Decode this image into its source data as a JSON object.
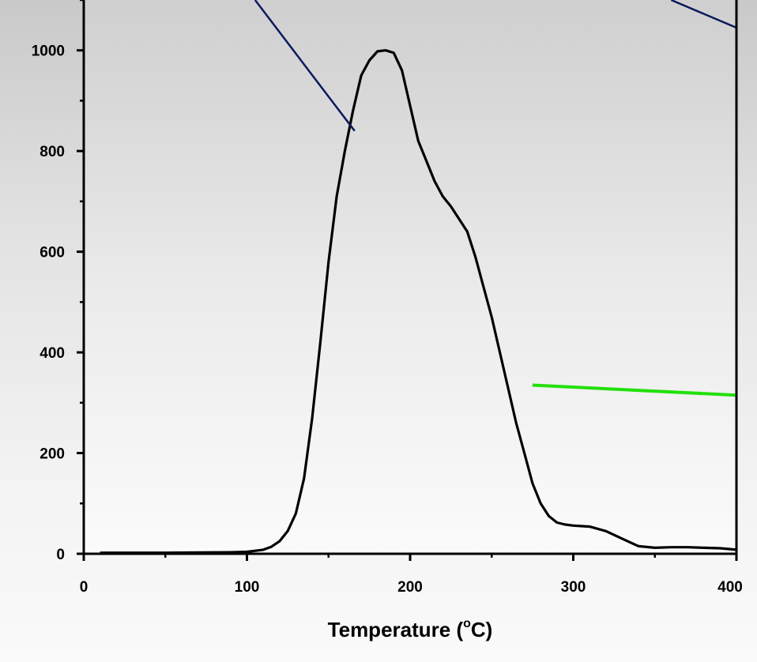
{
  "chart_data": {
    "type": "line",
    "title": "",
    "xlabel": "Temperature (",
    "xlabel_sup": "o",
    "xlabel_unit": "C)",
    "ylabel": "",
    "xlim": [
      0,
      400
    ],
    "ylim": [
      0,
      1100
    ],
    "x_ticks": [
      0,
      100,
      200,
      300,
      400
    ],
    "y_ticks": [
      0,
      200,
      400,
      600,
      800,
      1000
    ],
    "grid": false,
    "colors": {
      "line": "#000000",
      "annotation_navy": "#0a1a5c",
      "annotation_green": "#22e00a"
    },
    "series": [
      {
        "x": [
          10,
          50,
          90,
          100,
          110,
          115,
          120,
          125,
          130,
          135,
          140,
          145,
          150,
          155,
          160,
          165,
          170,
          175,
          180,
          185,
          190,
          195,
          200,
          205,
          210,
          215,
          220,
          225,
          230,
          235,
          240,
          245,
          250,
          255,
          260,
          265,
          270,
          275,
          280,
          285,
          290,
          295,
          300,
          310,
          320,
          330,
          340,
          350,
          360,
          370,
          380,
          390,
          400
        ],
        "y": [
          2,
          2,
          3,
          4,
          8,
          14,
          25,
          45,
          80,
          150,
          270,
          420,
          580,
          710,
          800,
          880,
          950,
          980,
          998,
          1000,
          995,
          960,
          890,
          820,
          780,
          740,
          710,
          690,
          665,
          640,
          590,
          530,
          470,
          400,
          330,
          260,
          200,
          140,
          100,
          75,
          62,
          58,
          56,
          54,
          45,
          30,
          15,
          12,
          13,
          13,
          12,
          11,
          8
        ]
      }
    ],
    "annotations": [
      {
        "type": "line",
        "color": "navy",
        "x1": 105,
        "y1": 1100,
        "x2": 166,
        "y2": 840
      },
      {
        "type": "line",
        "color": "navy",
        "x1": 360,
        "y1": 1100,
        "x2": 400,
        "y2": 1045
      },
      {
        "type": "line",
        "color": "green",
        "x1": 275,
        "y1": 335,
        "x2": 400,
        "y2": 315
      }
    ]
  }
}
